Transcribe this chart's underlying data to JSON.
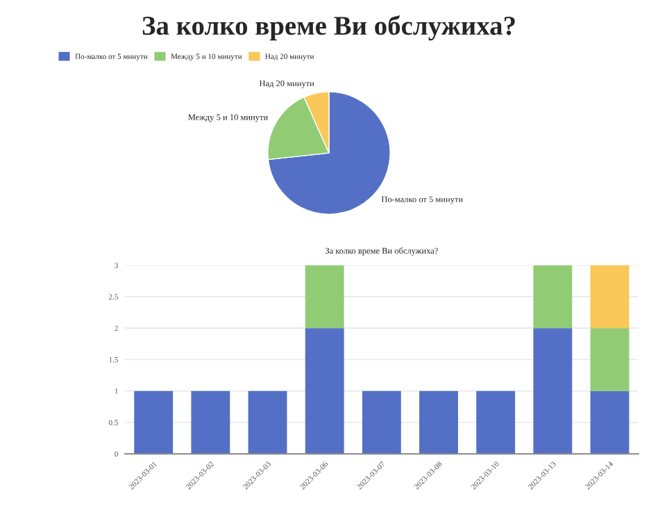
{
  "chart_data": [
    {
      "type": "pie",
      "title": "За колко време Ви обслужиха?",
      "legend": "top left",
      "categories": [
        "По-малко от 5 минути",
        "Между 5 и 10 минути",
        "Над 20 минути"
      ],
      "values": [
        73.3,
        20,
        6.7
      ],
      "colors": [
        "#5470c6",
        "#91cc75",
        "#fac858"
      ]
    },
    {
      "type": "bar",
      "title": "За колко време Ви обслужиха?",
      "stacked": true,
      "grid": "y",
      "categories": [
        "2023-03-01",
        "2023-03-02",
        "2023-03-03",
        "2023-03-06",
        "2023-03-07",
        "2023-03-08",
        "2023-03-10",
        "2023-03-13",
        "2023-03-14"
      ],
      "series": [
        {
          "color": "#5470c6",
          "values": [
            1,
            1,
            1,
            2,
            1,
            1,
            1,
            2,
            1
          ]
        },
        {
          "color": "#91cc75",
          "values": [
            null,
            null,
            null,
            1,
            null,
            null,
            null,
            1,
            1
          ]
        },
        {
          "color": "#fac858",
          "values": [
            null,
            null,
            null,
            null,
            null,
            null,
            null,
            null,
            1
          ]
        }
      ],
      "ylim": [
        0,
        3
      ],
      "yticks": [
        0,
        0.5,
        1,
        1.5,
        2,
        2.5,
        3
      ]
    }
  ]
}
